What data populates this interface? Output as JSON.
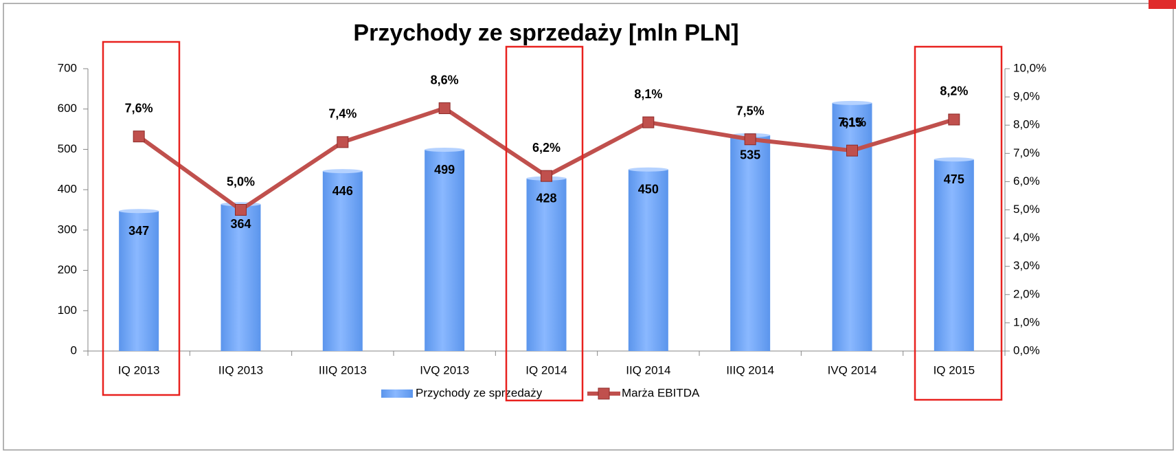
{
  "chart_data": {
    "type": "bar",
    "title": "Przychody ze sprzedaży [mln PLN]",
    "categories": [
      "IQ 2013",
      "IIQ 2013",
      "IIIQ 2013",
      "IVQ 2013",
      "IQ 2014",
      "IIQ 2014",
      "IIIQ 2014",
      "IVQ 2014",
      "IQ 2015"
    ],
    "series": [
      {
        "name": "Przychody ze sprzedaży",
        "type": "bar",
        "color": "#5b95ec",
        "values": [
          347,
          364,
          446,
          499,
          428,
          450,
          535,
          615,
          475
        ]
      },
      {
        "name": "Marża EBITDA",
        "type": "line",
        "axis": "y2",
        "color": "#c0504d",
        "values": [
          7.6,
          5.0,
          7.4,
          8.6,
          6.2,
          8.1,
          7.5,
          7.1,
          8.2
        ],
        "value_labels": [
          "7,6%",
          "5,0%",
          "7,4%",
          "8,6%",
          "6,2%",
          "8,1%",
          "7,5%",
          "7,1%",
          "8,2%"
        ]
      }
    ],
    "ylim": [
      0,
      700
    ],
    "yticks": [
      0,
      100,
      200,
      300,
      400,
      500,
      600,
      700
    ],
    "y2lim": [
      0,
      10
    ],
    "y2ticks": [
      {
        "value": 0,
        "label": "0,0%"
      },
      {
        "value": 1,
        "label": "1,0%"
      },
      {
        "value": 2,
        "label": "2,0%"
      },
      {
        "value": 3,
        "label": "3,0%"
      },
      {
        "value": 4,
        "label": "4,0%"
      },
      {
        "value": 5,
        "label": "5,0%"
      },
      {
        "value": 6,
        "label": "6,0%"
      },
      {
        "value": 7,
        "label": "7,0%"
      },
      {
        "value": 8,
        "label": "8,0%"
      },
      {
        "value": 9,
        "label": "9,0%"
      },
      {
        "value": 10,
        "label": "10,0%"
      }
    ],
    "legend": "bottom"
  }
}
